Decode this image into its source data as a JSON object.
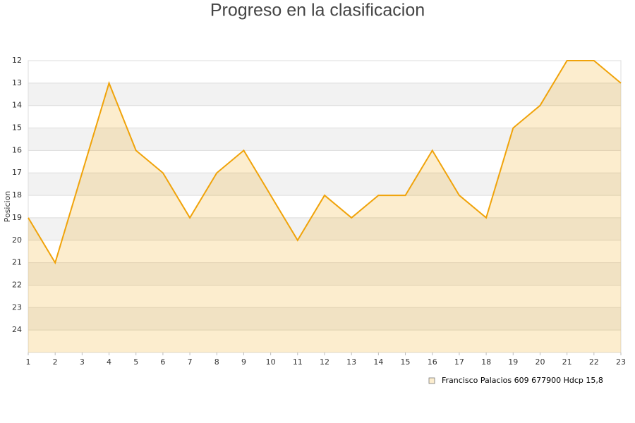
{
  "chart_data": {
    "type": "line",
    "title": "Progreso en la clasificacion",
    "y_label": "Posicion",
    "x": [
      1,
      2,
      3,
      4,
      5,
      6,
      7,
      8,
      9,
      10,
      11,
      12,
      13,
      14,
      15,
      16,
      17,
      18,
      19,
      20,
      21,
      22,
      23
    ],
    "series": [
      {
        "name": "Francisco Palacios  609 677900 Hdcp 15,8",
        "color": "#f0a30a",
        "values": [
          19,
          21,
          17,
          13,
          16,
          17,
          19,
          17,
          16,
          18,
          20,
          18,
          19,
          18,
          18,
          16,
          18,
          19,
          15,
          14,
          12,
          12,
          13
        ]
      }
    ],
    "xlim": [
      1,
      23
    ],
    "xticks": [
      1,
      2,
      3,
      4,
      5,
      6,
      7,
      8,
      9,
      10,
      11,
      12,
      13,
      14,
      15,
      16,
      17,
      18,
      19,
      20,
      21,
      22,
      23
    ],
    "ylim": [
      12,
      25
    ],
    "yticks": [
      12,
      13,
      14,
      15,
      16,
      17,
      18,
      19,
      20,
      21,
      22,
      23,
      24
    ],
    "y_reversed": true,
    "grid": true,
    "alternate_bands": true,
    "area_fill": true,
    "legend": "bottom-right"
  }
}
